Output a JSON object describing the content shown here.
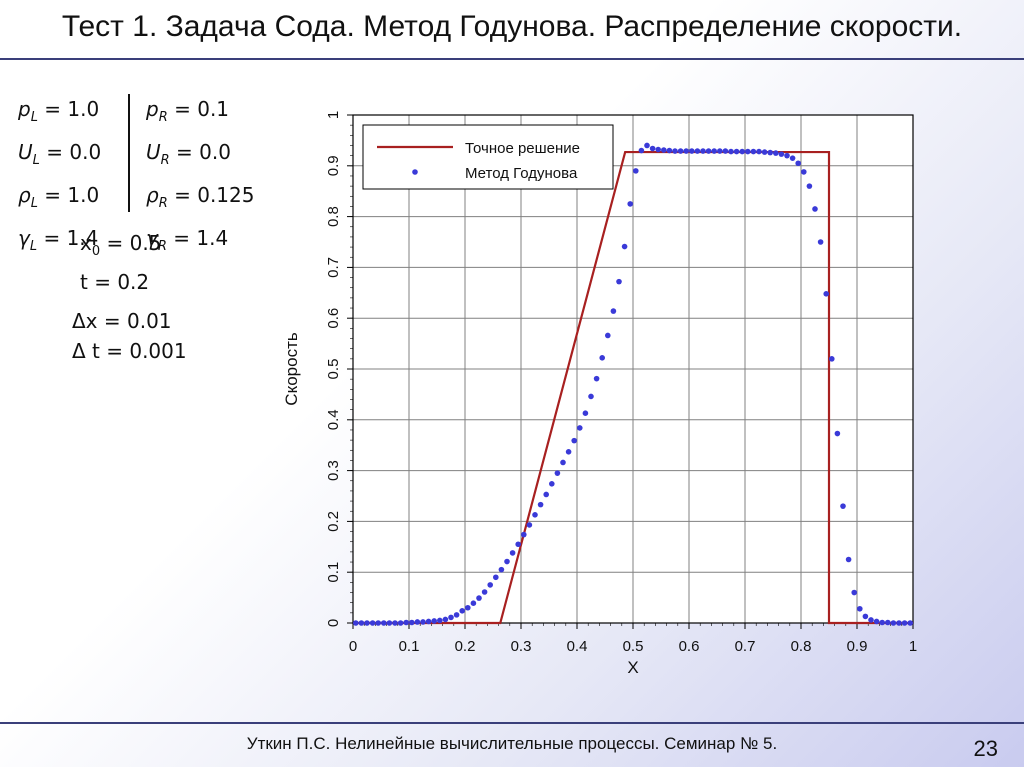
{
  "slide": {
    "title": "Тест 1. Задача Сода. Метод Годунова. Распределение скорости.",
    "footer": "Уткин П.С. Нелинейные вычислительные процессы. Семинар № 5.",
    "page_number": "23"
  },
  "params": {
    "left": [
      {
        "sym": "p",
        "sub": "L",
        "val": " = 1.0"
      },
      {
        "sym": "U",
        "sub": "L",
        "val": " = 0.0"
      },
      {
        "sym": "ρ",
        "sub": "L",
        "val": " = 1.0"
      },
      {
        "sym": "γ",
        "sub": "L",
        "val": " = 1.4"
      }
    ],
    "right": [
      {
        "sym": "p",
        "sub": "R",
        "val": " = 0.1"
      },
      {
        "sym": "U",
        "sub": "R",
        "val": " = 0.0"
      },
      {
        "sym": "ρ",
        "sub": "R",
        "val": " = 0.125"
      },
      {
        "sym": "γ",
        "sub": "R",
        "val": " = 1.4"
      }
    ],
    "x0_sym": "x",
    "x0_sub": "0",
    "x0_val": " = 0.5",
    "t_line": "t = 0.2",
    "dx_line": "Δx = 0.01",
    "dt_line": "Δ t = 0.001"
  },
  "chart_data": {
    "type": "line",
    "xlabel": "X",
    "ylabel": "Скорость",
    "xlim": [
      0,
      1
    ],
    "ylim": [
      0,
      1
    ],
    "xticks": [
      "0",
      "0.1",
      "0.2",
      "0.3",
      "0.4",
      "0.5",
      "0.6",
      "0.7",
      "0.8",
      "0.9",
      "1"
    ],
    "yticks": [
      "0",
      "0.1",
      "0.2",
      "0.3",
      "0.4",
      "0.5",
      "0.6",
      "0.7",
      "0.8",
      "0.9",
      "1"
    ],
    "grid": true,
    "legend_position": "top-left",
    "series": [
      {
        "name": "Точное решение",
        "style": "line",
        "color": "#a82020",
        "x": [
          0,
          0.263,
          0.486,
          0.85,
          0.85,
          1.0
        ],
        "y": [
          0,
          0,
          0.927,
          0.927,
          0,
          0
        ]
      },
      {
        "name": "Метод Годунова",
        "style": "markers",
        "color": "#3a3ad8",
        "x": [
          0.005,
          0.015,
          0.025,
          0.035,
          0.045,
          0.055,
          0.065,
          0.075,
          0.085,
          0.095,
          0.105,
          0.115,
          0.125,
          0.135,
          0.145,
          0.155,
          0.165,
          0.175,
          0.185,
          0.195,
          0.205,
          0.215,
          0.225,
          0.235,
          0.245,
          0.255,
          0.265,
          0.275,
          0.285,
          0.295,
          0.305,
          0.315,
          0.325,
          0.335,
          0.345,
          0.355,
          0.365,
          0.375,
          0.385,
          0.395,
          0.405,
          0.415,
          0.425,
          0.435,
          0.445,
          0.455,
          0.465,
          0.475,
          0.485,
          0.495,
          0.505,
          0.515,
          0.525,
          0.535,
          0.545,
          0.555,
          0.565,
          0.575,
          0.585,
          0.595,
          0.605,
          0.615,
          0.625,
          0.635,
          0.645,
          0.655,
          0.665,
          0.675,
          0.685,
          0.695,
          0.705,
          0.715,
          0.725,
          0.735,
          0.745,
          0.755,
          0.765,
          0.775,
          0.785,
          0.795,
          0.805,
          0.815,
          0.825,
          0.835,
          0.845,
          0.855,
          0.865,
          0.875,
          0.885,
          0.895,
          0.905,
          0.915,
          0.925,
          0.935,
          0.945,
          0.955,
          0.965,
          0.975,
          0.985,
          0.995
        ],
        "y": [
          0,
          0,
          0,
          0,
          0,
          0,
          0,
          0,
          0,
          0.001,
          0.001,
          0.002,
          0.002,
          0.003,
          0.004,
          0.005,
          0.007,
          0.011,
          0.016,
          0.024,
          0.03,
          0.039,
          0.049,
          0.061,
          0.075,
          0.09,
          0.105,
          0.121,
          0.138,
          0.155,
          0.174,
          0.193,
          0.213,
          0.233,
          0.253,
          0.274,
          0.295,
          0.316,
          0.337,
          0.359,
          0.384,
          0.413,
          0.446,
          0.481,
          0.522,
          0.566,
          0.614,
          0.672,
          0.741,
          0.825,
          0.89,
          0.93,
          0.94,
          0.934,
          0.932,
          0.931,
          0.93,
          0.929,
          0.929,
          0.929,
          0.929,
          0.929,
          0.929,
          0.929,
          0.929,
          0.929,
          0.929,
          0.928,
          0.928,
          0.928,
          0.928,
          0.928,
          0.928,
          0.927,
          0.926,
          0.925,
          0.923,
          0.92,
          0.915,
          0.905,
          0.888,
          0.86,
          0.815,
          0.75,
          0.648,
          0.52,
          0.373,
          0.23,
          0.125,
          0.06,
          0.028,
          0.013,
          0.006,
          0.003,
          0.001,
          0.001,
          0,
          0,
          0,
          0
        ]
      }
    ]
  }
}
